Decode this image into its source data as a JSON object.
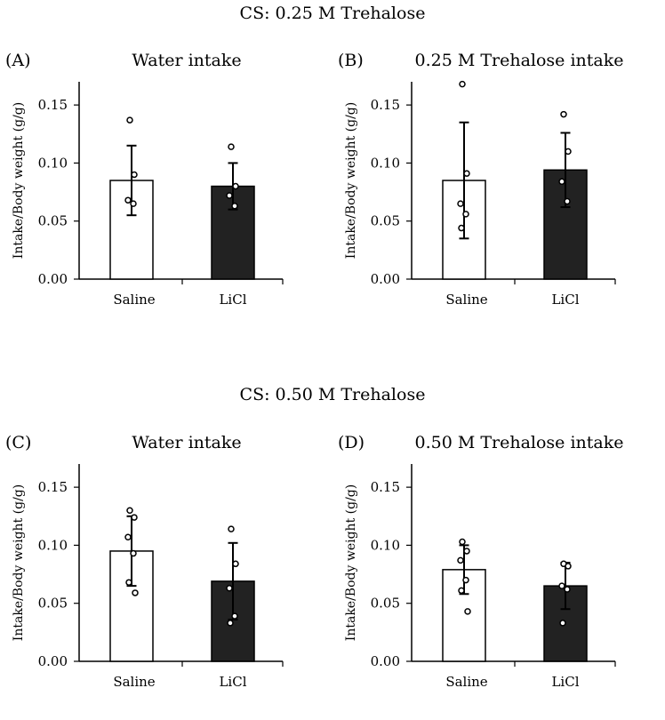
{
  "sections": [
    {
      "title": "CS: 0.25 M Trehalose"
    },
    {
      "title": "CS: 0.50 M Trehalose"
    }
  ],
  "colors": {
    "saline": "#ffffff",
    "licl": "#222222",
    "stroke": "#000000"
  },
  "chart_data": [
    {
      "type": "bar",
      "panel": "(A)",
      "title": "Water intake",
      "ylabel": "Intake/Body weight (g/g)",
      "categories": [
        "Saline",
        "LiCl"
      ],
      "values": [
        0.085,
        0.08
      ],
      "errors": [
        0.03,
        0.02
      ],
      "points": [
        [
          0.137,
          0.09,
          0.068,
          0.065
        ],
        [
          0.114,
          0.08,
          0.072,
          0.063
        ]
      ],
      "ylim": [
        0,
        0.17
      ],
      "yticks": [
        "0.00",
        "0.05",
        "0.10",
        "0.15"
      ]
    },
    {
      "type": "bar",
      "panel": "(B)",
      "title": "0.25 M Trehalose intake",
      "ylabel": "Intake/Body weight (g/g)",
      "categories": [
        "Saline",
        "LiCl"
      ],
      "values": [
        0.085,
        0.094
      ],
      "errors": [
        0.05,
        0.032
      ],
      "points": [
        [
          0.168,
          0.091,
          0.065,
          0.056,
          0.044
        ],
        [
          0.142,
          0.11,
          0.084,
          0.067
        ]
      ],
      "ylim": [
        0,
        0.17
      ],
      "yticks": [
        "0.00",
        "0.05",
        "0.10",
        "0.15"
      ]
    },
    {
      "type": "bar",
      "panel": "(C)",
      "title": "Water intake",
      "ylabel": "Intake/Body weight (g/g)",
      "categories": [
        "Saline",
        "LiCl"
      ],
      "values": [
        0.095,
        0.069
      ],
      "errors": [
        0.03,
        0.033
      ],
      "points": [
        [
          0.13,
          0.124,
          0.107,
          0.093,
          0.068,
          0.059
        ],
        [
          0.114,
          0.084,
          0.063,
          0.039,
          0.033
        ]
      ],
      "ylim": [
        0,
        0.17
      ],
      "yticks": [
        "0.00",
        "0.05",
        "0.10",
        "0.15"
      ]
    },
    {
      "type": "bar",
      "panel": "(D)",
      "title": "0.50 M Trehalose intake",
      "ylabel": "Intake/Body weight (g/g)",
      "categories": [
        "Saline",
        "LiCl"
      ],
      "values": [
        0.079,
        0.065
      ],
      "errors": [
        0.021,
        0.02
      ],
      "points": [
        [
          0.103,
          0.095,
          0.087,
          0.07,
          0.061,
          0.043
        ],
        [
          0.084,
          0.082,
          0.065,
          0.062,
          0.033
        ]
      ],
      "ylim": [
        0,
        0.17
      ],
      "yticks": [
        "0.00",
        "0.05",
        "0.10",
        "0.15"
      ]
    }
  ]
}
